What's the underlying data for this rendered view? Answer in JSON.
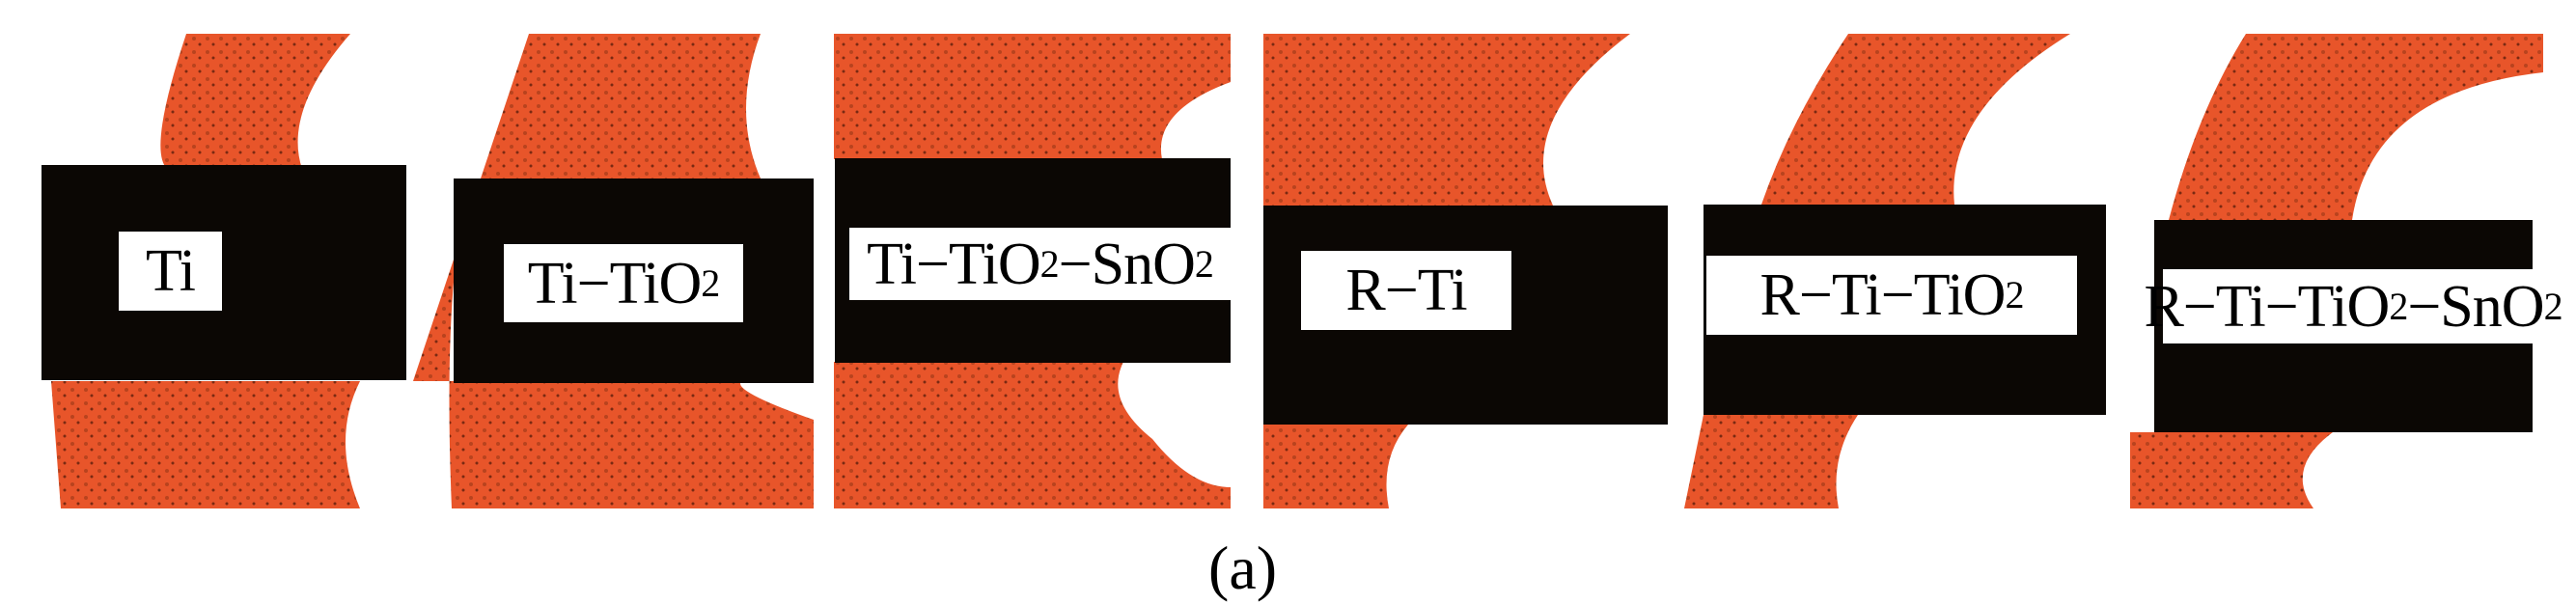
{
  "figure": {
    "caption": "(a)",
    "colors": {
      "bone": "#e8552a",
      "bone_dark": "#b8431e",
      "implant": "#0b0704",
      "background": "#ffffff"
    },
    "panels": [
      {
        "label_main": "Ti",
        "parts": [
          [
            "Ti",
            ""
          ]
        ]
      },
      {
        "label_main": "Ti-TiO2",
        "parts": [
          [
            "Ti−TiO",
            "2"
          ]
        ]
      },
      {
        "label_main": "Ti-TiO2-SnO2",
        "parts": [
          [
            "Ti−TiO",
            "2"
          ],
          [
            "−SnO",
            "2"
          ]
        ]
      },
      {
        "label_main": "R-Ti",
        "parts": [
          [
            "R−Ti",
            ""
          ]
        ]
      },
      {
        "label_main": "R-Ti-TiO2",
        "parts": [
          [
            "R−Ti−TiO",
            "2"
          ]
        ]
      },
      {
        "label_main": "R-Ti-TiO2-SnO2",
        "parts": [
          [
            "R−Ti−TiO",
            "2"
          ],
          [
            "−SnO",
            "2"
          ]
        ]
      }
    ]
  }
}
